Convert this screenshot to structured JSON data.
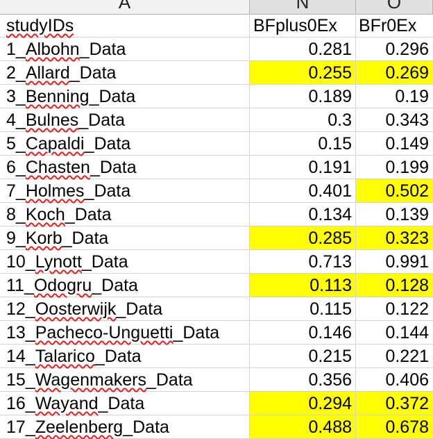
{
  "columns": {
    "a": "A",
    "n": "N",
    "o": "O"
  },
  "highlight_color": "#ffff00",
  "spellcheck_underline_color": "#e02020",
  "header_row": {
    "a": "studyIDs",
    "n": "BFplus0Ex",
    "o": "BFr0Ex"
  },
  "rows": [
    {
      "id_num": "1_",
      "id_name": "Albohn",
      "id_suffix": "_Data",
      "n": "0.281",
      "o": "0.296",
      "hl_n": false,
      "hl_o": false
    },
    {
      "id_num": "2_",
      "id_name": "Allard",
      "id_suffix": "_Data",
      "n": "0.255",
      "o": "0.269",
      "hl_n": true,
      "hl_o": true
    },
    {
      "id_num": "3_",
      "id_name": "Benning",
      "id_suffix": "_Data",
      "n": "0.189",
      "o": "0.19",
      "hl_n": false,
      "hl_o": false
    },
    {
      "id_num": "4_",
      "id_name": "Bulnes",
      "id_suffix": "_Data",
      "n": "0.3",
      "o": "0.343",
      "hl_n": false,
      "hl_o": false
    },
    {
      "id_num": "5_",
      "id_name": "Capaldi",
      "id_suffix": "_Data",
      "n": "0.15",
      "o": "0.149",
      "hl_n": false,
      "hl_o": false
    },
    {
      "id_num": "6_",
      "id_name": "Chasten",
      "id_suffix": "_Data",
      "n": "0.191",
      "o": "0.199",
      "hl_n": false,
      "hl_o": false
    },
    {
      "id_num": "7_",
      "id_name": "Holmes",
      "id_suffix": "_Data",
      "n": "0.401",
      "o": "0.502",
      "hl_n": false,
      "hl_o": true
    },
    {
      "id_num": "8_",
      "id_name": "Koch",
      "id_suffix": "_Data",
      "n": "0.134",
      "o": "0.139",
      "hl_n": false,
      "hl_o": false
    },
    {
      "id_num": "9_",
      "id_name": "Korb",
      "id_suffix": "_Data",
      "n": "0.285",
      "o": "0.323",
      "hl_n": true,
      "hl_o": true
    },
    {
      "id_num": "10_",
      "id_name": "Lynott",
      "id_suffix": "_Data",
      "n": "0.713",
      "o": "0.991",
      "hl_n": false,
      "hl_o": false
    },
    {
      "id_num": "11_",
      "id_name": "Odogru",
      "id_suffix": "_Data",
      "n": "0.113",
      "o": "0.128",
      "hl_n": true,
      "hl_o": true
    },
    {
      "id_num": "12_",
      "id_name": "Oosterwijk",
      "id_suffix": "_Data",
      "n": "0.115",
      "o": "0.122",
      "hl_n": false,
      "hl_o": false
    },
    {
      "id_num": "13_",
      "id_name": "Pacheco-Unguetti",
      "id_suffix": "_Data",
      "n": "0.146",
      "o": "0.144",
      "hl_n": false,
      "hl_o": false
    },
    {
      "id_num": "14_",
      "id_name": "Talarico",
      "id_suffix": "_Data",
      "n": "0.215",
      "o": "0.221",
      "hl_n": false,
      "hl_o": false
    },
    {
      "id_num": "15_",
      "id_name": "Wagenmakers",
      "id_suffix": "_Data",
      "n": "0.356",
      "o": "0.406",
      "hl_n": false,
      "hl_o": false
    },
    {
      "id_num": "16_",
      "id_name": "Wayand",
      "id_suffix": "_Data",
      "n": "0.294",
      "o": "0.372",
      "hl_n": true,
      "hl_o": true
    },
    {
      "id_num": "17_",
      "id_name": "Zeelenberg",
      "id_suffix": "_Data",
      "n": "0.488",
      "o": "0.678",
      "hl_n": true,
      "hl_o": true
    }
  ]
}
